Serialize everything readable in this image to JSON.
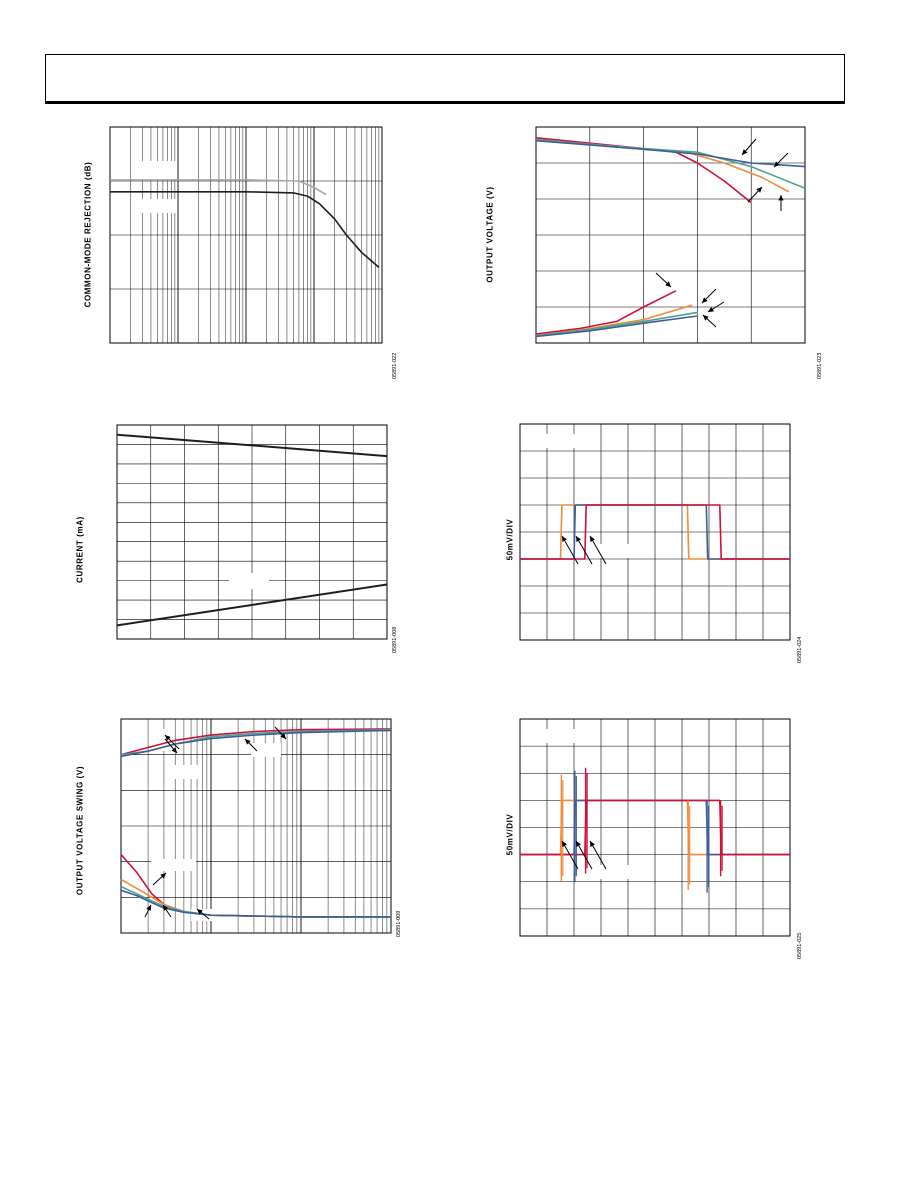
{
  "page": {
    "header": ""
  },
  "colors": {
    "red": "#d0103a",
    "orange": "#f38b3a",
    "teal": "#4fa38a",
    "blue": "#3a5f9c",
    "gray": "#a8a8a8",
    "black": "#1e1e1e"
  },
  "figures": {
    "f22": {
      "ylabel": "COMMON-MODE REJECTION (dB)",
      "id": "05891-022"
    },
    "f23": {
      "ylabel": "OUTPUT VOLTAGE (V)",
      "id": "05891-023"
    },
    "f08": {
      "ylabel": "CURRENT (mA)",
      "id": "05891-008"
    },
    "f24": {
      "ylabel": "50mV/DIV",
      "id": "05891-024"
    },
    "f09": {
      "ylabel": "OUTPUT VOLTAGE SWING (V)",
      "id": "05891-009"
    },
    "f25": {
      "ylabel": "50mV/DIV",
      "id": "05891-025"
    }
  },
  "chart_data": [
    {
      "type": "line",
      "title": "",
      "xlabel": "",
      "ylabel": "COMMON-MODE REJECTION (dB)",
      "x_scale": "log",
      "xlim": [
        1,
        10000
      ],
      "ylim": [
        0,
        4
      ],
      "grid": true,
      "series": [
        {
          "color": "#a8a8a8",
          "x": [
            1,
            100,
            600,
            1000,
            1500
          ],
          "y": [
            3.02,
            3.02,
            3.0,
            2.88,
            2.75
          ]
        },
        {
          "color": "#1e1e1e",
          "x": [
            1,
            100,
            500,
            800,
            1200,
            2000,
            3000,
            5000,
            9000
          ],
          "y": [
            2.8,
            2.8,
            2.78,
            2.72,
            2.58,
            2.3,
            2.0,
            1.68,
            1.4
          ]
        }
      ]
    },
    {
      "type": "line",
      "title": "",
      "xlabel": "",
      "ylabel": "OUTPUT VOLTAGE (V)",
      "xlim": [
        0,
        5
      ],
      "ylim": [
        0,
        6
      ],
      "grid": true,
      "series": [
        {
          "color": "#d0103a",
          "x": [
            0,
            1,
            2,
            2.6,
            3.0,
            3.5,
            4.0
          ],
          "y": [
            5.7,
            5.55,
            5.4,
            5.3,
            5.0,
            4.5,
            3.9
          ]
        },
        {
          "color": "#f38b3a",
          "x": [
            0,
            1,
            2,
            2.8,
            3.5,
            4.2,
            4.7
          ],
          "y": [
            5.65,
            5.52,
            5.4,
            5.3,
            5.0,
            4.6,
            4.2
          ]
        },
        {
          "color": "#4fa38a",
          "x": [
            0,
            1,
            2,
            3.0,
            4.0,
            5.0
          ],
          "y": [
            5.65,
            5.52,
            5.4,
            5.3,
            4.9,
            4.3
          ]
        },
        {
          "color": "#3a5f9c",
          "x": [
            0,
            1,
            2,
            3.0,
            4.0,
            5.0
          ],
          "y": [
            5.62,
            5.5,
            5.38,
            5.25,
            5.0,
            4.9
          ]
        },
        {
          "color": "#d0103a",
          "x": [
            0,
            0.8,
            1.5,
            2.0,
            2.6
          ],
          "y": [
            0.25,
            0.4,
            0.6,
            1.0,
            1.45
          ]
        },
        {
          "color": "#f38b3a",
          "x": [
            0,
            1,
            2,
            2.9
          ],
          "y": [
            0.2,
            0.4,
            0.65,
            1.05
          ]
        },
        {
          "color": "#4fa38a",
          "x": [
            0,
            1,
            2,
            3.0
          ],
          "y": [
            0.2,
            0.38,
            0.6,
            0.85
          ]
        },
        {
          "color": "#3a5f9c",
          "x": [
            0,
            1,
            2,
            3.0
          ],
          "y": [
            0.18,
            0.34,
            0.55,
            0.75
          ]
        }
      ]
    },
    {
      "type": "line",
      "title": "",
      "xlabel": "",
      "ylabel": "CURRENT (mA)",
      "xlim": [
        0,
        8
      ],
      "ylim": [
        0,
        11
      ],
      "grid": true,
      "series": [
        {
          "color": "#1e1e1e",
          "x": [
            0,
            8
          ],
          "y": [
            10.5,
            9.4
          ]
        },
        {
          "color": "#1e1e1e",
          "x": [
            0,
            8
          ],
          "y": [
            0.7,
            2.8
          ]
        }
      ]
    },
    {
      "type": "line",
      "title": "",
      "xlabel": "",
      "ylabel": "50mV/DIV",
      "xlim": [
        0,
        10
      ],
      "ylim": [
        0,
        8
      ],
      "grid": true,
      "series": [
        {
          "color": "#f38b3a",
          "x": [
            0,
            1.5,
            1.55,
            6.2,
            6.25,
            10
          ],
          "y": [
            3,
            3,
            5,
            5,
            3,
            3
          ]
        },
        {
          "color": "#3a5f9c",
          "x": [
            0,
            2.0,
            2.05,
            6.9,
            6.95,
            10
          ],
          "y": [
            3,
            3,
            5,
            5,
            3,
            3
          ]
        },
        {
          "color": "#d0103a",
          "x": [
            0,
            2.4,
            2.45,
            7.4,
            7.45,
            10
          ],
          "y": [
            3,
            3,
            5,
            5,
            3,
            3
          ]
        }
      ]
    },
    {
      "type": "line",
      "title": "",
      "xlabel": "",
      "ylabel": "OUTPUT VOLTAGE SWING (V)",
      "x_scale": "log",
      "xlim": [
        1,
        1000
      ],
      "ylim": [
        0,
        6
      ],
      "grid": true,
      "series": [
        {
          "color": "#d0103a",
          "x": [
            1,
            2,
            4,
            10,
            30,
            100,
            1000
          ],
          "y": [
            5.0,
            5.2,
            5.4,
            5.55,
            5.65,
            5.7,
            5.72
          ]
        },
        {
          "color": "#4fa38a",
          "x": [
            1,
            2,
            4,
            10,
            30,
            100,
            1000
          ],
          "y": [
            5.0,
            5.1,
            5.3,
            5.5,
            5.6,
            5.65,
            5.7
          ]
        },
        {
          "color": "#3a5f9c",
          "x": [
            1,
            2,
            4,
            10,
            30,
            100,
            1000
          ],
          "y": [
            4.95,
            5.1,
            5.3,
            5.45,
            5.55,
            5.62,
            5.68
          ]
        },
        {
          "color": "#d0103a",
          "x": [
            1,
            1.5,
            2.2,
            3,
            5,
            10,
            100,
            1000
          ],
          "y": [
            2.2,
            1.7,
            1.1,
            0.8,
            0.6,
            0.5,
            0.45,
            0.45
          ]
        },
        {
          "color": "#f38b3a",
          "x": [
            1,
            1.5,
            2.2,
            3,
            5,
            10,
            100,
            1000
          ],
          "y": [
            1.5,
            1.25,
            1.0,
            0.8,
            0.6,
            0.5,
            0.45,
            0.45
          ]
        },
        {
          "color": "#4fa38a",
          "x": [
            1,
            1.5,
            2.2,
            3,
            5,
            10,
            100,
            1000
          ],
          "y": [
            1.3,
            1.1,
            0.9,
            0.75,
            0.6,
            0.5,
            0.45,
            0.45
          ]
        },
        {
          "color": "#3a5f9c",
          "x": [
            1,
            1.5,
            2.2,
            3,
            5,
            10,
            100,
            1000
          ],
          "y": [
            1.2,
            1.05,
            0.85,
            0.7,
            0.58,
            0.5,
            0.45,
            0.45
          ]
        }
      ]
    },
    {
      "type": "line",
      "title": "",
      "xlabel": "",
      "ylabel": "50mV/DIV",
      "xlim": [
        0,
        10
      ],
      "ylim": [
        0,
        8
      ],
      "grid": true,
      "series": [
        {
          "color": "#f38b3a",
          "x": [
            0,
            1.5,
            1.55,
            6.2,
            6.25,
            10
          ],
          "y": [
            3,
            3,
            5,
            5,
            3,
            3
          ]
        },
        {
          "color": "#3a5f9c",
          "x": [
            0,
            2.0,
            2.05,
            6.9,
            6.95,
            10
          ],
          "y": [
            3,
            3,
            5,
            5,
            3,
            3
          ]
        },
        {
          "color": "#d0103a",
          "x": [
            0,
            2.4,
            2.45,
            7.4,
            7.45,
            10
          ],
          "y": [
            3,
            3,
            5,
            5,
            3,
            3
          ]
        }
      ]
    }
  ]
}
